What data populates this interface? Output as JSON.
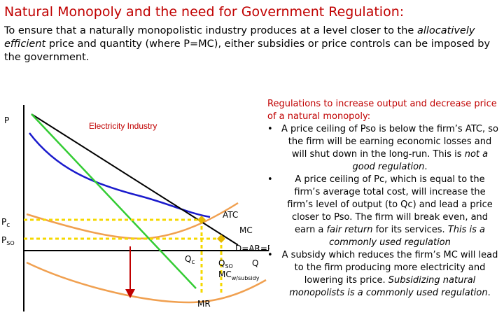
{
  "title": "Natural Monopoly and the need for Government Regulation:",
  "intro": {
    "part1": "To ensure that a naturally monopolistic industry produces at a level closer to the ",
    "emph": "allocatively efficient",
    "part2": " price and quantity (where P=MC), either subsidies or price controls can be imposed by the government."
  },
  "diagram": {
    "industry_label": "Electricity Industry",
    "y_axis_label": "P",
    "price_labels": [
      "Pc",
      "PSO"
    ],
    "qc_label": "Qc",
    "qso_label": "QSO",
    "q_axis_label": "Q",
    "atc_label": "ATC",
    "mc_label": "MC",
    "demand_label": "D=AR=P",
    "mr_label": "MR",
    "mc_subsidy_label": "MCw/subsidy",
    "colors": {
      "demand": "#000000",
      "mr": "#33cc33",
      "atc": "#1a1acc",
      "mc": "#f0a050",
      "dotted": "#f5d800",
      "arrow": "#c00000",
      "point": "#e6b800",
      "heading": "#c00000"
    }
  },
  "sidebar": {
    "heading": "Regulations to increase output and decrease price of a natural monopoly:",
    "bullets": [
      {
        "a": "A price ceiling of Pso is below the firm’s ATC, so the firm will be earning economic losses and will shut down in the long-run. This is ",
        "b": "not a good regulation",
        "c": "."
      },
      {
        "a": "A price ceiling of Pc, which is equal to the firm’s average total cost, will increase the firm’s level of output (to Qc) and lead a price closer to Pso. The firm will break even, and earn a ",
        "b": "fair return",
        "c": " for its services. ",
        "d": "This is a commonly used regulation"
      },
      {
        "a": "A subsidy which reduces the firm’s MC will lead to the firm producing more electricity and lowering its price. ",
        "b": "Subsidizing natural monopolists is a commonly used regulation",
        "c": "."
      }
    ]
  }
}
